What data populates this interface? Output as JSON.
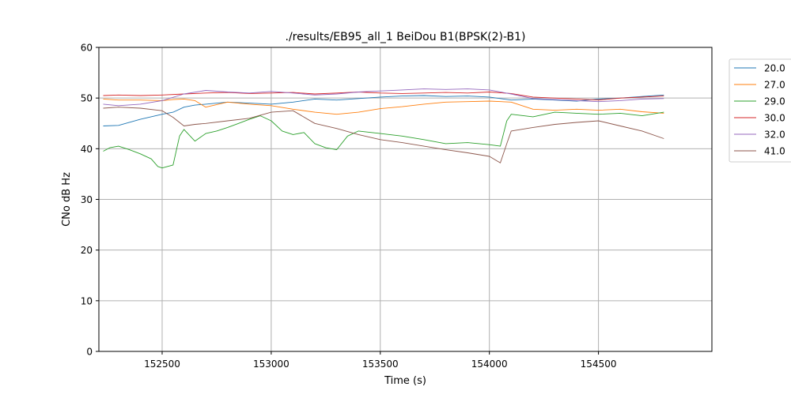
{
  "chart_data": {
    "type": "line",
    "title": "./results/EB95_all_1 BeiDou B1(BPSK(2)-B1)",
    "xlabel": "Time (s)",
    "ylabel": "CNo dB Hz",
    "xlim": [
      152210,
      155020
    ],
    "ylim": [
      0,
      60
    ],
    "xticks": [
      152500,
      153000,
      153500,
      154000,
      154500
    ],
    "yticks": [
      0,
      10,
      20,
      30,
      40,
      50,
      60
    ],
    "xtick_labels": [
      "152500",
      "153000",
      "153500",
      "154000",
      "154500"
    ],
    "ytick_labels": [
      "0",
      "10",
      "20",
      "30",
      "40",
      "50",
      "60"
    ],
    "grid": true,
    "legend_position": "upper right, outside plot",
    "series": [
      {
        "name": "20.0",
        "color": "#1f77b4",
        "x": [
          152230,
          152300,
          152400,
          152500,
          152550,
          152600,
          152650,
          152700,
          152800,
          152900,
          153000,
          153100,
          153200,
          153300,
          153400,
          153500,
          153600,
          153700,
          153800,
          153900,
          154000,
          154100,
          154200,
          154300,
          154400,
          154500,
          154600,
          154700,
          154800
        ],
        "y": [
          44.5,
          44.6,
          45.8,
          46.8,
          47.2,
          48.2,
          48.6,
          48.8,
          49.2,
          49.0,
          48.8,
          49.2,
          49.8,
          49.6,
          49.9,
          50.2,
          50.4,
          50.5,
          50.3,
          50.4,
          50.2,
          49.6,
          49.8,
          49.6,
          49.4,
          49.8,
          50.0,
          50.3,
          50.6
        ]
      },
      {
        "name": "27.0",
        "color": "#ff7f0e",
        "x": [
          152230,
          152300,
          152400,
          152500,
          152550,
          152600,
          152650,
          152700,
          152800,
          152900,
          153000,
          153100,
          153200,
          153300,
          153400,
          153500,
          153600,
          153700,
          153800,
          153900,
          154000,
          154100,
          154200,
          154300,
          154400,
          154500,
          154600,
          154700,
          154800
        ],
        "y": [
          49.8,
          49.6,
          49.6,
          49.5,
          49.7,
          49.8,
          49.5,
          48.2,
          49.2,
          48.8,
          48.5,
          47.8,
          47.2,
          46.8,
          47.2,
          47.9,
          48.3,
          48.8,
          49.2,
          49.3,
          49.4,
          49.2,
          47.8,
          47.6,
          47.8,
          47.6,
          47.8,
          47.3,
          47.0
        ]
      },
      {
        "name": "29.0",
        "color": "#2ca02c",
        "x": [
          152230,
          152260,
          152300,
          152350,
          152400,
          152450,
          152480,
          152500,
          152550,
          152580,
          152600,
          152650,
          152700,
          152750,
          152800,
          152850,
          152900,
          152950,
          153000,
          153050,
          153100,
          153150,
          153200,
          153250,
          153300,
          153350,
          153400,
          153500,
          153600,
          153700,
          153800,
          153900,
          154000,
          154050,
          154080,
          154100,
          154200,
          154300,
          154400,
          154500,
          154600,
          154700,
          154800
        ],
        "y": [
          39.5,
          40.2,
          40.5,
          39.8,
          39.0,
          38.0,
          36.5,
          36.2,
          36.8,
          42.5,
          43.8,
          41.5,
          43.0,
          43.5,
          44.2,
          45.0,
          45.8,
          46.5,
          45.5,
          43.5,
          42.8,
          43.2,
          41.0,
          40.2,
          39.8,
          42.5,
          43.5,
          43.0,
          42.5,
          41.8,
          41.0,
          41.2,
          40.8,
          40.5,
          45.5,
          46.8,
          46.3,
          47.2,
          47.0,
          46.8,
          47.0,
          46.5,
          47.2
        ]
      },
      {
        "name": "30.0",
        "color": "#d62728",
        "x": [
          152230,
          152300,
          152400,
          152500,
          152600,
          152700,
          152800,
          152900,
          153000,
          153100,
          153200,
          153300,
          153400,
          153500,
          153600,
          153700,
          153800,
          153900,
          154000,
          154100,
          154200,
          154300,
          154400,
          154500,
          154600,
          154700,
          154800
        ],
        "y": [
          50.5,
          50.6,
          50.5,
          50.6,
          50.8,
          51.0,
          51.1,
          50.9,
          51.0,
          51.1,
          50.8,
          51.0,
          51.2,
          51.0,
          50.9,
          51.0,
          51.1,
          51.0,
          51.2,
          50.9,
          50.2,
          50.0,
          49.8,
          49.6,
          50.0,
          50.2,
          50.4
        ]
      },
      {
        "name": "32.0",
        "color": "#9467bd",
        "x": [
          152230,
          152300,
          152400,
          152500,
          152600,
          152700,
          152800,
          152900,
          153000,
          153100,
          153200,
          153300,
          153400,
          153500,
          153600,
          153700,
          153800,
          153900,
          154000,
          154100,
          154200,
          154300,
          154400,
          154500,
          154600,
          154700,
          154800
        ],
        "y": [
          48.8,
          48.5,
          48.8,
          49.5,
          50.8,
          51.5,
          51.2,
          51.0,
          51.3,
          51.0,
          50.6,
          50.8,
          51.2,
          51.4,
          51.6,
          51.8,
          51.7,
          51.8,
          51.6,
          50.8,
          49.9,
          49.7,
          49.5,
          49.3,
          49.5,
          49.8,
          49.9
        ]
      },
      {
        "name": "41.0",
        "color": "#8c564b",
        "x": [
          152230,
          152300,
          152400,
          152500,
          152550,
          152600,
          152650,
          152700,
          152800,
          152900,
          153000,
          153100,
          153200,
          153300,
          153400,
          153500,
          153600,
          153700,
          153800,
          153900,
          154000,
          154050,
          154080,
          154100,
          154200,
          154300,
          154400,
          154500,
          154600,
          154700,
          154800
        ],
        "y": [
          48.0,
          48.2,
          48.0,
          47.5,
          46.2,
          44.5,
          44.8,
          45.0,
          45.5,
          46.0,
          47.2,
          47.5,
          45.0,
          44.0,
          42.8,
          41.8,
          41.2,
          40.5,
          39.8,
          39.2,
          38.5,
          37.2,
          41.0,
          43.5,
          44.2,
          44.8,
          45.2,
          45.5,
          44.5,
          43.5,
          42.0
        ]
      }
    ]
  }
}
